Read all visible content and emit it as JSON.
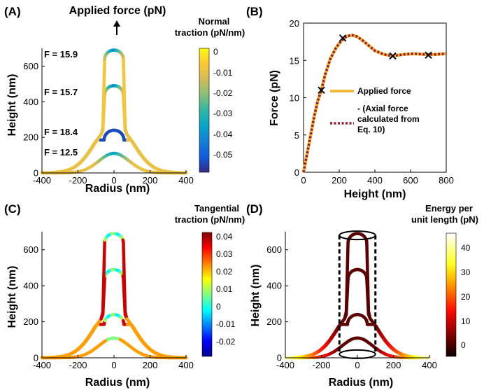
{
  "colors": {
    "applied_force": "#F0B93A",
    "axial_force": "#9C1B2B",
    "marker": "#000000",
    "parula": [
      "#352A87",
      "#0F5CDD",
      "#1481D6",
      "#06A4CA",
      "#2EB7A4",
      "#87BF77",
      "#D1BB59",
      "#FEC832",
      "#F9FB0E"
    ],
    "jet": [
      "#00008F",
      "#0000FF",
      "#0080FF",
      "#00FFFF",
      "#80FF80",
      "#FFFF00",
      "#FF8000",
      "#FF0000",
      "#800000"
    ],
    "hot": [
      "#0A0000",
      "#600000",
      "#B50000",
      "#FF0B00",
      "#FF6000",
      "#FFB500",
      "#FFFF20",
      "#FFFF8F",
      "#FFFFFF"
    ]
  },
  "panels": {
    "a": {
      "label": "(A)",
      "annotation": "Applied force (pN)",
      "force_labels": [
        "F = 15.9",
        "F = 15.7",
        "F = 18.4",
        "F = 12.5"
      ],
      "colorbar_title": [
        "Normal",
        "traction (pN/nm)"
      ],
      "colorbar_ticks": [
        "0",
        "-0.01",
        "-0.02",
        "-0.03",
        "-0.04",
        "-0.05"
      ]
    },
    "b": {
      "label": "(B)",
      "legend": {
        "applied": "Applied force",
        "axial": [
          "- (Axial force",
          "calculated from",
          "Eq. 10)"
        ]
      }
    },
    "c": {
      "label": "(C)",
      "colorbar_title": [
        "Tangential",
        "traction (pN/nm)"
      ],
      "colorbar_ticks": [
        "0.04",
        "0.03",
        "0.02",
        "0.01",
        "0",
        "-0.01",
        "-0.02"
      ]
    },
    "d": {
      "label": "(D)",
      "colorbar_title": [
        "Energy per",
        "unit length (pN)"
      ],
      "colorbar_ticks": [
        "40",
        "30",
        "20",
        "10",
        "0"
      ]
    }
  },
  "chart_data": [
    {
      "id": "a",
      "type": "line",
      "xlabel": "Radius (nm)",
      "ylabel": "Height (nm)",
      "xlim": [
        -400,
        400
      ],
      "ylim": [
        0,
        700
      ],
      "xticks": [
        -400,
        -200,
        0,
        200,
        400
      ],
      "yticks": [
        0,
        200,
        400,
        600
      ],
      "series": [
        {
          "name": "F = 15.9",
          "tip_height": 690
        },
        {
          "name": "F = 15.7",
          "tip_height": 490
        },
        {
          "name": "F = 18.4",
          "tip_height": 240
        },
        {
          "name": "F = 12.5",
          "tip_height": 110
        }
      ],
      "colorbar": {
        "label": "Normal traction (pN/nm)",
        "range": [
          -0.057,
          0.003
        ]
      }
    },
    {
      "id": "b",
      "type": "line",
      "title": "",
      "xlabel": "Height (nm)",
      "ylabel": "Force (pN)",
      "xlim": [
        0,
        800
      ],
      "ylim": [
        0,
        20
      ],
      "xticks": [
        0,
        200,
        400,
        600,
        800
      ],
      "yticks": [
        0,
        5,
        10,
        15,
        20
      ],
      "series": [
        {
          "name": "Applied force",
          "x": [
            0,
            20,
            40,
            60,
            80,
            100,
            120,
            150,
            180,
            210,
            240,
            270,
            300,
            330,
            360,
            400,
            450,
            500,
            560,
            620,
            680,
            740,
            800
          ],
          "y": [
            0,
            2.5,
            5,
            7.5,
            9.6,
            11.0,
            13.0,
            15.2,
            16.6,
            17.6,
            18.2,
            18.4,
            18.2,
            17.7,
            17.1,
            16.3,
            15.8,
            15.6,
            15.8,
            15.9,
            15.8,
            15.8,
            15.9
          ]
        },
        {
          "name": "- (Axial force calculated from Eq. 10)",
          "x": [
            0,
            20,
            40,
            60,
            80,
            100,
            120,
            150,
            180,
            210,
            240,
            270,
            300,
            330,
            360,
            400,
            450,
            500,
            560,
            620,
            680,
            740,
            800
          ],
          "y": [
            0,
            2.5,
            5,
            7.5,
            9.6,
            11.0,
            13.0,
            15.2,
            16.6,
            17.6,
            18.2,
            18.4,
            18.2,
            17.7,
            17.1,
            16.3,
            15.8,
            15.6,
            15.8,
            15.9,
            15.8,
            15.8,
            15.9
          ]
        }
      ],
      "markers": {
        "x": [
          100,
          220,
          500,
          700
        ],
        "y": [
          11.0,
          18.0,
          15.6,
          15.7
        ]
      }
    },
    {
      "id": "c",
      "type": "line",
      "xlabel": "Radius (nm)",
      "ylabel": "Height (nm)",
      "xlim": [
        -400,
        400
      ],
      "ylim": [
        0,
        700
      ],
      "xticks": [
        -400,
        -200,
        0,
        200,
        400
      ],
      "yticks": [
        0,
        200,
        400,
        600
      ],
      "colorbar": {
        "label": "Tangential traction (pN/nm)",
        "range": [
          -0.027,
          0.044
        ]
      }
    },
    {
      "id": "d",
      "type": "line",
      "xlabel": "Radius (nm)",
      "ylabel": "Height (nm)",
      "xlim": [
        -400,
        400
      ],
      "ylim": [
        0,
        700
      ],
      "xticks": [
        -400,
        -200,
        0,
        200,
        400
      ],
      "yticks": [
        0,
        200,
        400,
        600
      ],
      "cylinder": {
        "radius": 100,
        "bottom": 20,
        "top": 680
      },
      "colorbar": {
        "label": "Energy per unit length (pN)",
        "range": [
          -5,
          47
        ]
      }
    }
  ]
}
